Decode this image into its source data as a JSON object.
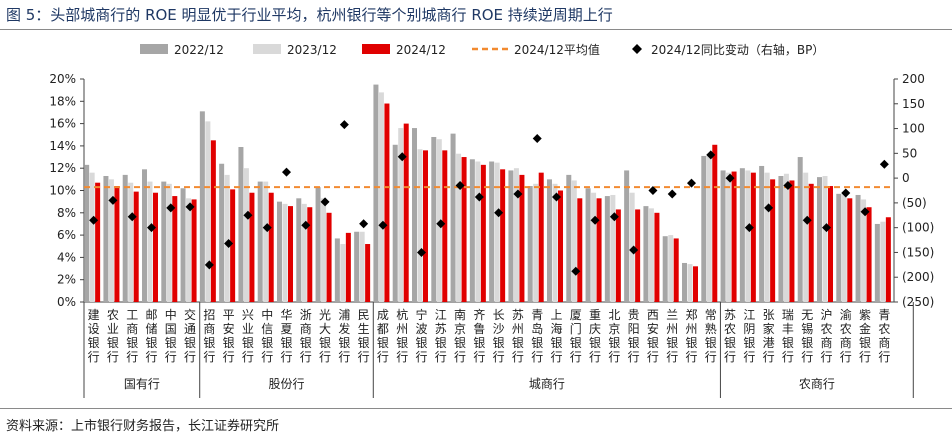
{
  "title": "图 5：头部城商行的 ROE 明显优于行业平均，杭州银行等个别城商行 ROE 持续逆周期上行",
  "source": "资料来源：上市银行财务报告，长江证券研究所",
  "chart_data": {
    "type": "bar",
    "colors": {
      "2022/12": "#a6a6a6",
      "2023/12": "#d9d9d9",
      "2024/12": "#e00000",
      "avg": "#f28a30",
      "bp": "#000000"
    },
    "legend_position": "top",
    "legend": {
      "bar_2022": "2022/12",
      "bar_2023": "2023/12",
      "bar_2024": "2024/12",
      "avg": "2024/12平均值",
      "bp": "2024/12同比变动（右轴，BP）"
    },
    "y_left": {
      "min": 0,
      "max": 20,
      "ticks": [
        "0%",
        "2%",
        "4%",
        "6%",
        "8%",
        "10%",
        "12%",
        "14%",
        "16%",
        "18%",
        "20%"
      ]
    },
    "y_right": {
      "min": -250,
      "max": 200,
      "ticks": [
        "(250)",
        "(200)",
        "(150)",
        "(100)",
        "(50)",
        "0",
        "50",
        "100",
        "150",
        "200"
      ]
    },
    "average_2024": 10.3,
    "groups": [
      {
        "name": "国有行",
        "start": 0,
        "end": 5
      },
      {
        "name": "股份行",
        "start": 6,
        "end": 14
      },
      {
        "name": "城商行",
        "start": 15,
        "end": 32
      },
      {
        "name": "农商行",
        "start": 33,
        "end": 42
      }
    ],
    "categories": [
      "建设银行",
      "农业银行",
      "工商银行",
      "邮储银行",
      "中国银行",
      "交通银行",
      "招商银行",
      "平安银行",
      "兴业银行",
      "中信银行",
      "华夏银行",
      "浙商银行",
      "光大银行",
      "浦发银行",
      "民生银行",
      "成都银行",
      "杭州银行",
      "宁波银行",
      "江苏银行",
      "南京银行",
      "齐鲁银行",
      "长沙银行",
      "苏州银行",
      "青岛银行",
      "上海银行",
      "厦门银行",
      "重庆银行",
      "北京银行",
      "贵阳银行",
      "西安银行",
      "兰州银行",
      "郑州银行",
      "常熟银行",
      "苏农银行",
      "江阴银行",
      "张家港行",
      "瑞丰银行",
      "无锡银行",
      "沪农商行",
      "渝农商行",
      "紫金银行",
      "青农商行"
    ],
    "series": [
      {
        "name": "2022/12",
        "values": [
          12.3,
          11.3,
          11.4,
          11.9,
          10.8,
          10.2,
          17.1,
          12.4,
          13.9,
          10.8,
          9.0,
          9.3,
          10.3,
          5.7,
          6.3,
          19.5,
          14.1,
          15.6,
          14.8,
          15.1,
          12.8,
          12.6,
          11.8,
          10.4,
          11.0,
          11.4,
          10.2,
          9.5,
          11.8,
          8.6,
          5.9,
          3.5,
          13.1,
          11.8,
          12.0,
          12.2,
          11.3,
          13.0,
          11.2,
          9.7,
          9.6,
          7.0
        ]
      },
      {
        "name": "2023/12",
        "values": [
          11.6,
          11.0,
          10.7,
          10.8,
          10.6,
          9.3,
          16.2,
          11.4,
          12.0,
          10.8,
          8.8,
          8.8,
          9.3,
          5.2,
          6.3,
          18.8,
          15.6,
          13.7,
          14.6,
          13.3,
          12.6,
          12.5,
          12.0,
          10.6,
          10.6,
          10.9,
          9.8,
          9.6,
          9.8,
          8.4,
          6.0,
          3.4,
          13.3,
          11.6,
          11.8,
          11.6,
          11.5,
          11.6,
          11.3,
          9.9,
          9.2,
          7.2
        ]
      },
      {
        "name": "2024/12",
        "values": [
          10.7,
          10.4,
          9.9,
          9.8,
          9.5,
          9.2,
          14.5,
          10.1,
          9.8,
          9.8,
          8.6,
          8.5,
          8.0,
          6.2,
          5.2,
          17.8,
          16.0,
          13.6,
          13.6,
          13.0,
          12.3,
          11.9,
          11.4,
          11.6,
          10.0,
          9.3,
          9.3,
          8.3,
          8.3,
          8.0,
          5.7,
          3.2,
          14.1,
          11.7,
          11.6,
          11.0,
          10.9,
          10.6,
          10.4,
          9.3,
          8.5,
          7.6
        ]
      },
      {
        "name": "2024/12同比变动（右轴，BP）",
        "axis": "right",
        "values": [
          -85,
          -45,
          -78,
          -100,
          -60,
          -58,
          -175,
          -132,
          -75,
          -100,
          12,
          -95,
          -48,
          108,
          -92,
          -95,
          43,
          -150,
          -92,
          -15,
          -38,
          -70,
          -32,
          80,
          -38,
          -188,
          -85,
          -78,
          -145,
          -25,
          -32,
          -10,
          47,
          0,
          -100,
          -60,
          -15,
          -85,
          -100,
          -30,
          -68,
          28
        ]
      }
    ]
  }
}
